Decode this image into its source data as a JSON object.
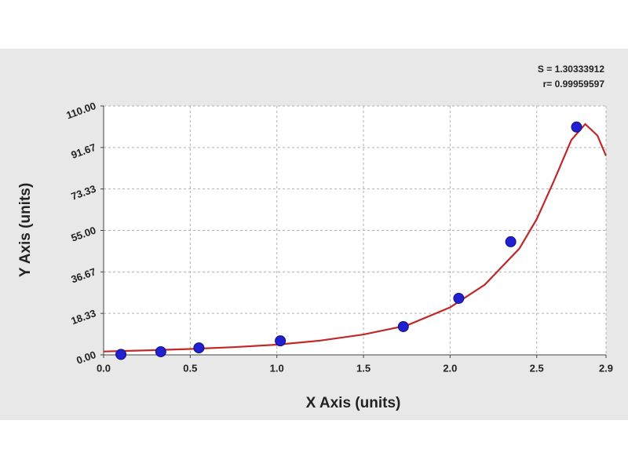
{
  "chart_data": {
    "type": "scatter",
    "x_label": "X Axis (units)",
    "y_label": "Y Axis (units)",
    "annotations": [
      "S = 1.30333912",
      "r= 0.99959597"
    ],
    "x": [
      0.1,
      0.33,
      0.55,
      1.02,
      1.73,
      2.05,
      2.35,
      2.73
    ],
    "values": [
      0.2,
      1.4,
      3.1,
      6.2,
      12.5,
      25,
      50,
      100.7
    ],
    "color": "#2020d0",
    "fit_line": {
      "x": [
        0,
        0.25,
        0.5,
        0.75,
        1.0,
        1.25,
        1.5,
        1.75,
        2.0,
        2.2,
        2.4,
        2.5,
        2.6,
        2.7,
        2.78,
        2.85,
        2.9
      ],
      "values": [
        1.5,
        2,
        2.6,
        3.4,
        4.5,
        6.3,
        9,
        13,
        21,
        31,
        47,
        60,
        77,
        95,
        102,
        97,
        88
      ],
      "color": "#c0282a"
    },
    "xlim": [
      0,
      2.9
    ],
    "xticks": [
      {
        "value": 0,
        "label": "0.0"
      },
      0.5,
      {
        "value": 1,
        "label": "1.0"
      },
      1.5,
      {
        "value": 2,
        "label": "2.0"
      },
      2.5,
      2.9
    ],
    "ylim": [
      0,
      110
    ],
    "yticks": [
      {
        "value": 0,
        "label": "0.00"
      },
      18.33,
      36.67,
      {
        "value": 55,
        "label": "55.00"
      },
      73.33,
      91.67,
      {
        "value": 110,
        "label": "110.00"
      }
    ],
    "grid": true
  }
}
